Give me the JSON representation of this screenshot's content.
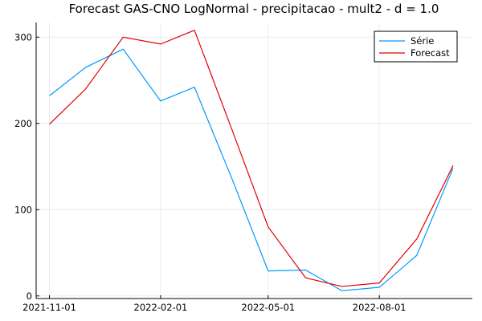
{
  "chart_data": {
    "type": "line",
    "title": "Forecast GAS-CNO LogNormal - precipitacao - mult2 - d = 1.0",
    "xlabel": "",
    "ylabel": "",
    "x": [
      "2021-11-01",
      "2021-12-01",
      "2022-01-01",
      "2022-02-01",
      "2022-03-01",
      "2022-04-01",
      "2022-05-01",
      "2022-06-01",
      "2022-07-01",
      "2022-08-01",
      "2022-09-01",
      "2022-10-01"
    ],
    "xticks": [
      "2021-11-01",
      "2022-02-01",
      "2022-05-01",
      "2022-08-01"
    ],
    "xlim": [
      "2021-10-21",
      "2022-10-17"
    ],
    "yticks": [
      0,
      100,
      200,
      300
    ],
    "ylim": [
      -3,
      317
    ],
    "grid": true,
    "legend_position": "top-right",
    "series": [
      {
        "name": "Série",
        "color": "#009AFA",
        "values": [
          232,
          265,
          286,
          226,
          242,
          136,
          29,
          30,
          6,
          10,
          47,
          148
        ]
      },
      {
        "name": "Forecast",
        "color": "#E30000",
        "values": [
          199,
          240,
          300,
          292,
          308,
          193,
          80,
          21,
          11,
          15,
          66,
          151
        ]
      }
    ]
  }
}
